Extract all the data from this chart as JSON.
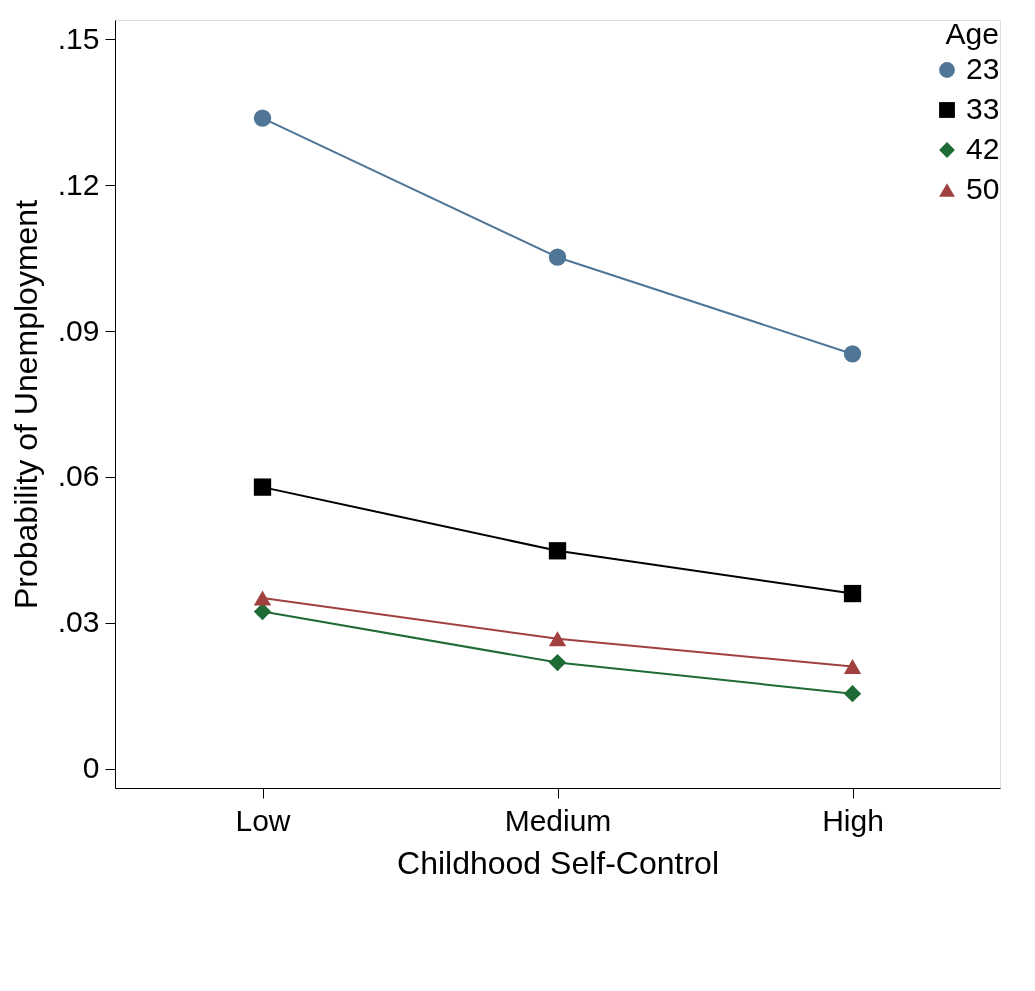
{
  "chart_data": {
    "type": "line",
    "xlabel": "Childhood Self-Control",
    "ylabel": "Probability of Unemployment",
    "legend_title": "Age",
    "legend": "top right",
    "grid": false,
    "categories": [
      "Low",
      "Medium",
      "High"
    ],
    "ylim": [
      -0.004,
      0.154
    ],
    "yticks": [
      {
        "value": 0,
        "label": "0"
      },
      {
        "value": 0.03,
        "label": ".03"
      },
      {
        "value": 0.06,
        "label": ".06"
      },
      {
        "value": 0.09,
        "label": ".09"
      },
      {
        "value": 0.12,
        "label": ".12"
      },
      {
        "value": 0.15,
        "label": ".15"
      }
    ],
    "series": [
      {
        "name": "23",
        "color": "#4f7597",
        "marker": "circle",
        "values": [
          0.1338,
          0.1052,
          0.0853
        ]
      },
      {
        "name": "33",
        "color": "#000000",
        "marker": "square",
        "values": [
          0.0579,
          0.0448,
          0.036
        ]
      },
      {
        "name": "42",
        "color": "#1f6b35",
        "marker": "diamond",
        "values": [
          0.0323,
          0.0218,
          0.0154
        ]
      },
      {
        "name": "50",
        "color": "#a0413f",
        "marker": "triangle",
        "values": [
          0.0351,
          0.0267,
          0.021
        ]
      }
    ]
  }
}
